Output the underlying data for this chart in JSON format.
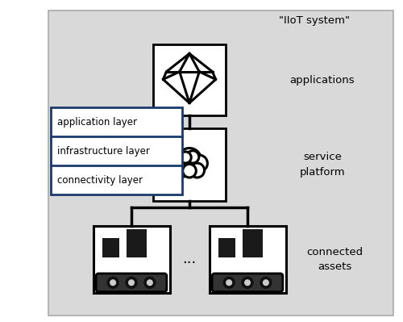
{
  "bg_color": "#d9d9d9",
  "white": "#ffffff",
  "black": "#000000",
  "dark_navy": "#1b3a6b",
  "title": "\"IIoT system\"",
  "label_applications": "applications",
  "label_service": "service\nplatform",
  "label_assets": "connected\nassets",
  "layer1": "application layer",
  "layer2": "infrastructure layer",
  "layer3": "connectivity layer",
  "dots": "...",
  "fig_width": 5.0,
  "fig_height": 3.99,
  "dpi": 100
}
